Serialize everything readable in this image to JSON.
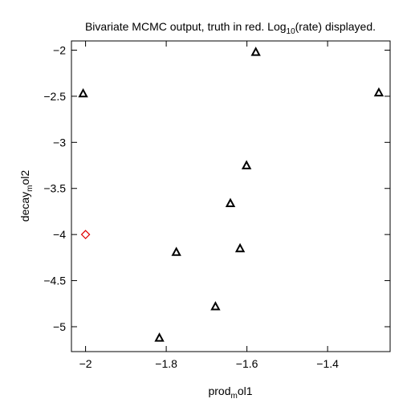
{
  "chart_data": {
    "type": "scatter",
    "title": {
      "before": "Bivariate MCMC output, truth in red. Log",
      "sub": "10",
      "after": "(rate) displayed."
    },
    "xlabel": {
      "base": "prod",
      "sub": "m",
      "after": "ol1"
    },
    "ylabel": {
      "base": "decay",
      "sub": "m",
      "after": "ol2"
    },
    "xlim": [
      -2.035,
      -1.245
    ],
    "ylim": [
      -5.27,
      -1.9
    ],
    "x_ticks": [
      {
        "value": -2.0,
        "label": "−2"
      },
      {
        "value": -1.8,
        "label": "−1.8"
      },
      {
        "value": -1.6,
        "label": "−1.6"
      },
      {
        "value": -1.4,
        "label": "−1.4"
      }
    ],
    "y_ticks": [
      {
        "value": -2.0,
        "label": "−2"
      },
      {
        "value": -2.5,
        "label": "−2.5"
      },
      {
        "value": -3.0,
        "label": "−3"
      },
      {
        "value": -3.5,
        "label": "−3.5"
      },
      {
        "value": -4.0,
        "label": "−4"
      },
      {
        "value": -4.5,
        "label": "−4.5"
      },
      {
        "value": -5.0,
        "label": "−5"
      }
    ],
    "grid": false,
    "series": [
      {
        "marker": "triangle",
        "color": "#000000",
        "points": [
          {
            "x": -2.006,
            "y": -2.47
          },
          {
            "x": -1.578,
            "y": -2.02
          },
          {
            "x": -1.273,
            "y": -2.46
          },
          {
            "x": -1.601,
            "y": -3.25
          },
          {
            "x": -1.641,
            "y": -3.66
          },
          {
            "x": -1.775,
            "y": -4.19
          },
          {
            "x": -1.617,
            "y": -4.15
          },
          {
            "x": -1.678,
            "y": -4.78
          },
          {
            "x": -1.817,
            "y": -5.12
          }
        ]
      },
      {
        "marker": "diamond",
        "color": "#e00000",
        "points": [
          {
            "x": -2.0,
            "y": -4.0
          }
        ]
      }
    ]
  }
}
